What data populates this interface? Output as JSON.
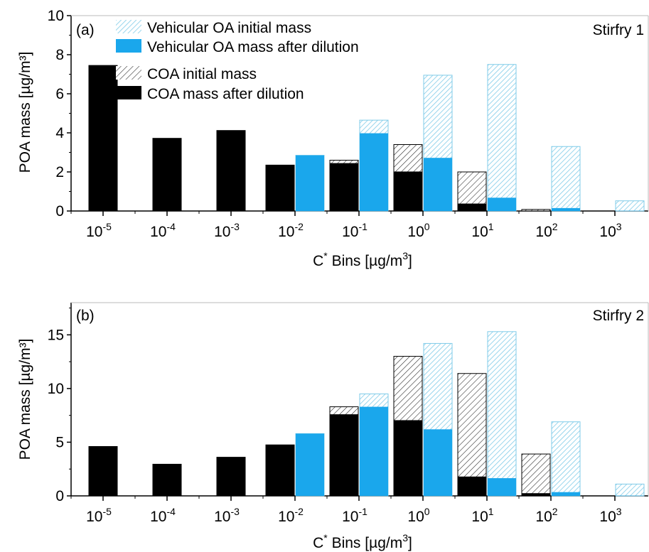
{
  "colors": {
    "vehicular": "#1aa7ec",
    "coa": "#000000",
    "hatch_vehicular": "#7fcbe8",
    "hatch_coa": "#222222"
  },
  "legend": {
    "items": [
      {
        "label": "Vehicular OA initial mass",
        "style": "hatch-blue"
      },
      {
        "label": "Vehicular OA mass after dilution",
        "style": "solid-blue"
      },
      {
        "label": "COA initial mass",
        "style": "hatch-black"
      },
      {
        "label": "COA mass after dilution",
        "style": "solid-black"
      }
    ]
  },
  "chart_data": [
    {
      "type": "bar",
      "panel_label": "(a)",
      "title": "Stirfry 1",
      "xlabel_main": "C",
      "xlabel_sup": "*",
      "xlabel_rest": " Bins [µg/m",
      "xlabel_sup2": "3",
      "xlabel_end": "]",
      "ylabel": "POA mass [µg/m³]",
      "ylim": [
        0,
        10
      ],
      "yticks": [
        0,
        2,
        4,
        6,
        8,
        10
      ],
      "categories": [
        "10^-5",
        "10^-4",
        "10^-3",
        "10^-2",
        "10^-1",
        "10^0",
        "10^1",
        "10^2",
        "10^3"
      ],
      "category_base": "10",
      "category_exp": [
        "-5",
        "-4",
        "-3",
        "-2",
        "-1",
        "0",
        "1",
        "2",
        "3"
      ],
      "series": [
        {
          "name": "COA initial mass",
          "values": [
            7.45,
            3.72,
            4.12,
            2.35,
            2.6,
            3.4,
            2.0,
            0.08,
            0
          ]
        },
        {
          "name": "COA mass after dilution",
          "values": [
            7.45,
            3.72,
            4.12,
            2.35,
            2.45,
            2.02,
            0.38,
            0.02,
            0
          ]
        },
        {
          "name": "Vehicular OA initial mass",
          "values": [
            0,
            0,
            0,
            2.85,
            4.65,
            6.95,
            7.5,
            3.3,
            0.52
          ]
        },
        {
          "name": "Vehicular OA mass after dilution",
          "values": [
            0,
            0,
            0,
            2.85,
            3.98,
            2.72,
            0.68,
            0.15,
            0.01
          ]
        }
      ]
    },
    {
      "type": "bar",
      "panel_label": "(b)",
      "title": "Stirfry 2",
      "xlabel_main": "C",
      "xlabel_sup": "*",
      "xlabel_rest": " Bins [µg/m",
      "xlabel_sup2": "3",
      "xlabel_end": "]",
      "ylabel": "POA mass [µg/m³]",
      "ylim": [
        0,
        18
      ],
      "yticks": [
        0,
        5,
        10,
        15
      ],
      "categories": [
        "10^-5",
        "10^-4",
        "10^-3",
        "10^-2",
        "10^-1",
        "10^0",
        "10^1",
        "10^2",
        "10^3"
      ],
      "category_base": "10",
      "category_exp": [
        "-5",
        "-4",
        "-3",
        "-2",
        "-1",
        "0",
        "1",
        "2",
        "3"
      ],
      "series": [
        {
          "name": "COA initial mass",
          "values": [
            4.6,
            2.95,
            3.6,
            4.75,
            8.3,
            13.0,
            11.4,
            3.9,
            0
          ]
        },
        {
          "name": "COA mass after dilution",
          "values": [
            4.6,
            2.95,
            3.6,
            4.75,
            7.6,
            7.05,
            1.8,
            0.25,
            0
          ]
        },
        {
          "name": "Vehicular OA initial mass",
          "values": [
            0,
            0,
            0,
            5.8,
            9.5,
            14.2,
            15.3,
            6.9,
            1.1
          ]
        },
        {
          "name": "Vehicular OA mass after dilution",
          "values": [
            0,
            0,
            0,
            5.8,
            8.3,
            6.2,
            1.65,
            0.35,
            0.02
          ]
        }
      ]
    }
  ]
}
